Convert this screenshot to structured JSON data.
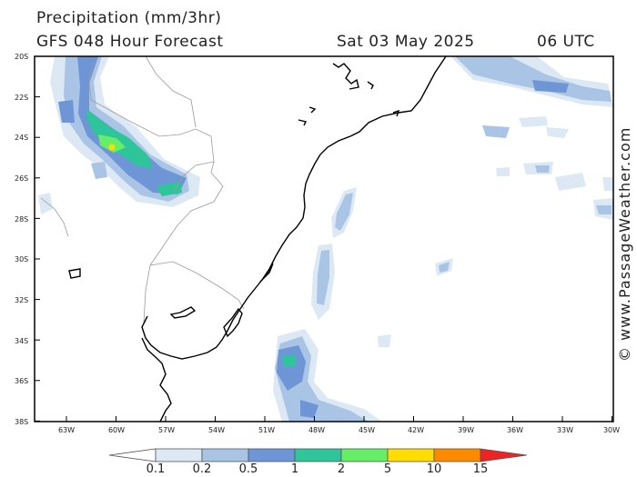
{
  "header": {
    "title": "Precipitation (mm/3hr)",
    "subtitle": "GFS 048 Hour Forecast",
    "valid_date": "Sat 03 May 2025",
    "valid_time": "06 UTC"
  },
  "watermark": "© www.PassageWeather.com",
  "map": {
    "lat_labels": [
      "20S",
      "22S",
      "24S",
      "26S",
      "28S",
      "30S",
      "32S",
      "34S",
      "36S",
      "38S"
    ],
    "lon_labels": [
      "63W",
      "60W",
      "57W",
      "54W",
      "51W",
      "48W",
      "45W",
      "42W",
      "39W",
      "36W",
      "33W",
      "30W"
    ]
  },
  "legend": {
    "levels": [
      "0.1",
      "0.2",
      "0.5",
      "1",
      "2",
      "5",
      "10",
      "15"
    ],
    "colors": [
      "#ffffff",
      "#dde8f5",
      "#a9c4e4",
      "#6e95d6",
      "#2fc59a",
      "#66ee66",
      "#ffdd00",
      "#ff8a00",
      "#ee2222"
    ]
  }
}
